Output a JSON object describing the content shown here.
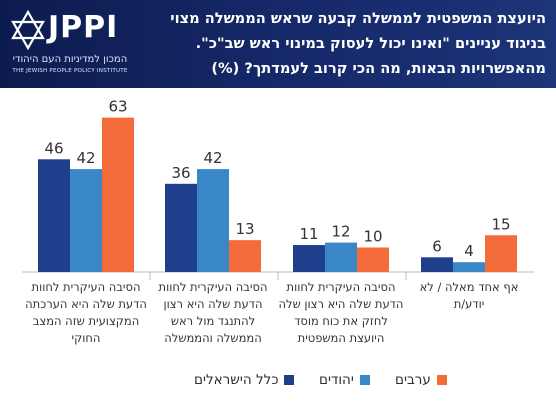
{
  "header": {
    "logo_text": "JPPI",
    "logo_sub_he": "המכון למדיניות העם היהודי",
    "logo_sub_en": "THE JEWISH PEOPLE POLICY INSTITUTE",
    "question_lines": [
      "היועצת המשפטית לממשלה קבעה שראש הממשלה מצוי",
      "בניגוד עניינים \"ואינו יכול לעסוק במינוי ראש שב\"כ\".",
      "מהאפשרויות הבאות, מה הכי קרוב לעמדתך? (%)"
    ]
  },
  "colors": {
    "header_bg": "#16296a",
    "series_all": "#1f3f8c",
    "series_jews": "#3a87c8",
    "series_arabs": "#f26b38"
  },
  "chart_data": {
    "type": "bar",
    "categories": [
      [
        "הסיבה העיקרית לחוות",
        "הדעת שלה היא הערכתה",
        "המקצועית שזה המצב",
        "החוקי"
      ],
      [
        "הסיבה העיקרית לחוות",
        "הדעת שלה היא רצון",
        "להתנגד מול ראש",
        "הממשלה והממשלה"
      ],
      [
        "הסיבה העיקרית לחוות",
        "הדעת שלה היא רצון שלה",
        "לחזק את כוח מוסד",
        "היועצת המשפטית"
      ],
      [
        "אף אחד מאלה / לא",
        "יודע/ת"
      ]
    ],
    "series": [
      {
        "name": "כלל הישראלים",
        "values": [
          46,
          36,
          11,
          6
        ]
      },
      {
        "name": "יהודים",
        "values": [
          42,
          42,
          12,
          4
        ]
      },
      {
        "name": "ערבים",
        "values": [
          63,
          13,
          10,
          15
        ]
      }
    ],
    "ylim": [
      0,
      70
    ],
    "grid": false,
    "legend_position": "bottom"
  }
}
